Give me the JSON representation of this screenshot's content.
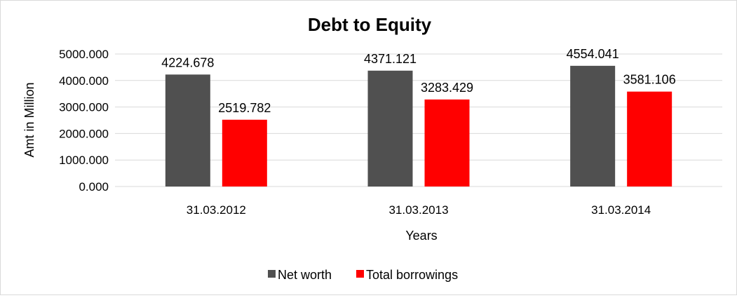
{
  "chart_data": {
    "type": "bar",
    "title": "Debt to Equity",
    "xlabel": "Years",
    "ylabel": "Amt in Million",
    "ylim": [
      0,
      5000
    ],
    "yticks": [
      "0.000",
      "1000.000",
      "2000.000",
      "3000.000",
      "4000.000",
      "5000.000"
    ],
    "categories": [
      "31.03.2012",
      "31.03.2013",
      "31.03.2014"
    ],
    "series": [
      {
        "name": "Net worth",
        "color": "#505050",
        "values": [
          4224.678,
          4371.121,
          4554.041
        ],
        "labels": [
          "4224.678",
          "4371.121",
          "4554.041"
        ]
      },
      {
        "name": "Total borrowings",
        "color": "#ff0000",
        "values": [
          2519.782,
          3283.429,
          3581.106
        ],
        "labels": [
          "2519.782",
          "3283.429",
          "3581.106"
        ]
      }
    ],
    "grid": true,
    "legend": "bottom"
  }
}
